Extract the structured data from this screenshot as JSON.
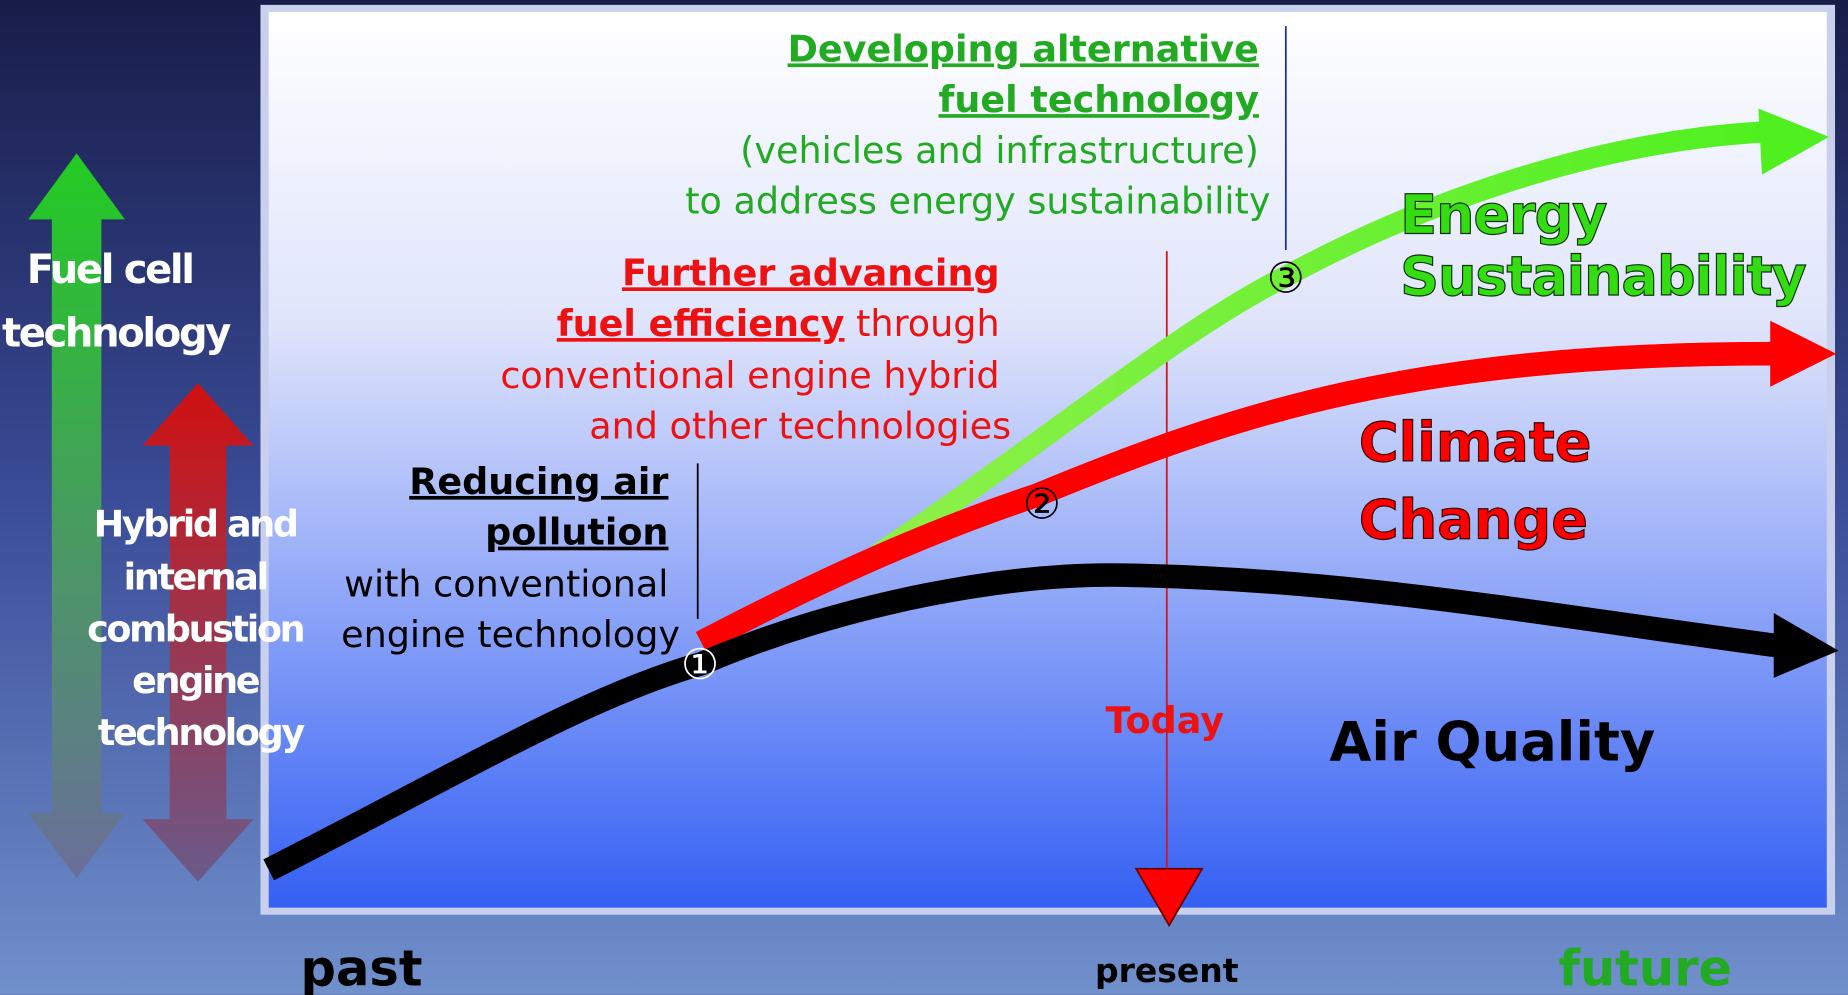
{
  "left_labels": {
    "fuel_cell": [
      "Fuel cell",
      "technology"
    ],
    "hybrid": [
      "Hybrid and",
      "internal",
      "combustion",
      "engine",
      "technology"
    ]
  },
  "annotations": {
    "step3": {
      "title": [
        "Developing alternative",
        "fuel technology"
      ],
      "text": [
        "(vehicles and infrastructure)",
        "to address energy sustainability"
      ]
    },
    "step2": {
      "title": [
        "Further advancing",
        "fuel efficiency"
      ],
      "text": [
        " through",
        "conventional engine hybrid",
        "and other technologies"
      ]
    },
    "step1": {
      "title": [
        "Reducing air",
        "pollution"
      ],
      "text": [
        "with conventional",
        "engine technology"
      ]
    }
  },
  "markers": [
    "①",
    "②",
    "③"
  ],
  "curve_labels": {
    "energy": [
      "Energy",
      "Sustainability"
    ],
    "climate": [
      "Climate",
      "Change"
    ],
    "air": "Air Quality"
  },
  "today": "Today",
  "timeline": {
    "past": "past",
    "present": "present",
    "future": "future"
  }
}
